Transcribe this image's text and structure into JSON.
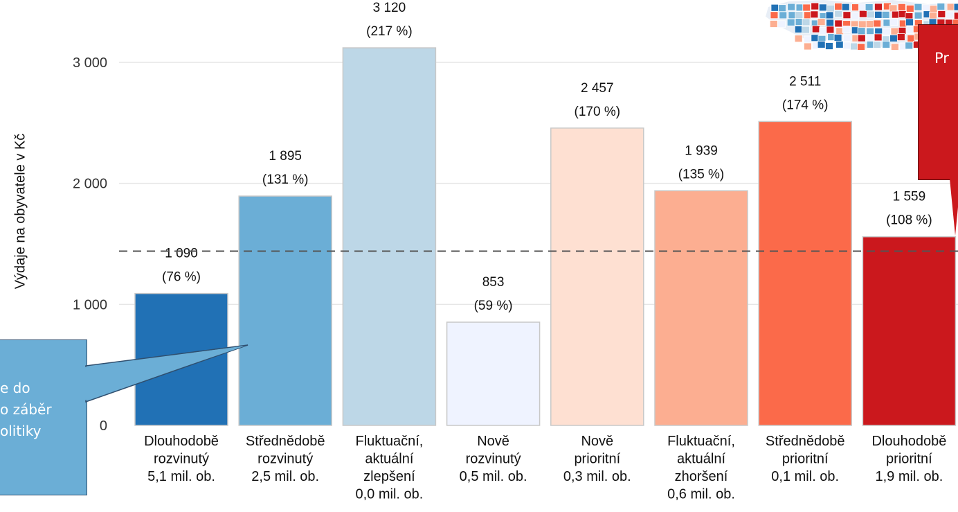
{
  "chart_data": {
    "type": "bar",
    "ylabel": "Výdaje na obyvatele v Kč",
    "ylim": [
      0,
      3300
    ],
    "yticks": [
      0,
      1000,
      2000,
      3000
    ],
    "ytick_labels": [
      "0",
      "1 000",
      "2 000",
      "3 000"
    ],
    "grid": true,
    "reference_line": 1440,
    "bars": [
      {
        "lines": [
          "Dlouhodobě",
          "rozvinutý",
          "5,1 mil. ob."
        ],
        "value": 1090,
        "value_label": "1 090",
        "pct_label": "(76 %)",
        "color": "#2171b5"
      },
      {
        "lines": [
          "Střednědobě",
          "rozvinutý",
          "2,5 mil. ob."
        ],
        "value": 1895,
        "value_label": "1 895",
        "pct_label": "(131 %)",
        "color": "#6baed6"
      },
      {
        "lines": [
          "Fluktuační,",
          "aktuální",
          "zlepšení",
          "0,0 mil. ob."
        ],
        "value": 3120,
        "value_label": "3 120",
        "pct_label": "(217 %)",
        "color": "#bdd7e7"
      },
      {
        "lines": [
          "Nově",
          "rozvinutý",
          "0,5 mil. ob."
        ],
        "value": 853,
        "value_label": "853",
        "pct_label": "(59 %)",
        "color": "#eff3ff"
      },
      {
        "lines": [
          "Nově",
          "prioritní",
          "0,3 mil. ob."
        ],
        "value": 2457,
        "value_label": "2 457",
        "pct_label": "(170 %)",
        "color": "#fee0d2"
      },
      {
        "lines": [
          "Fluktuační,",
          "aktuální",
          "zhoršení",
          "0,6 mil. ob."
        ],
        "value": 1939,
        "value_label": "1 939",
        "pct_label": "(135 %)",
        "color": "#fcae91"
      },
      {
        "lines": [
          "Střednědobě",
          "prioritní",
          "0,1 mil. ob."
        ],
        "value": 2511,
        "value_label": "2 511",
        "pct_label": "(174 %)",
        "color": "#fb6a4a"
      },
      {
        "lines": [
          "Dlouhodobě",
          "prioritní",
          "1,9 mil. ob."
        ],
        "value": 1559,
        "value_label": "1 559",
        "pct_label": "(108 %)",
        "color": "#cb181d"
      }
    ]
  },
  "callouts": {
    "blue_lines": [
      "e do",
      "o záběr",
      "olitiky"
    ],
    "red_text": "Pr"
  },
  "map": {
    "colors": [
      "#2171b5",
      "#6baed6",
      "#cb181d",
      "#fb6a4a",
      "#fcae91",
      "#bdd7e7",
      "#eff3ff"
    ]
  }
}
